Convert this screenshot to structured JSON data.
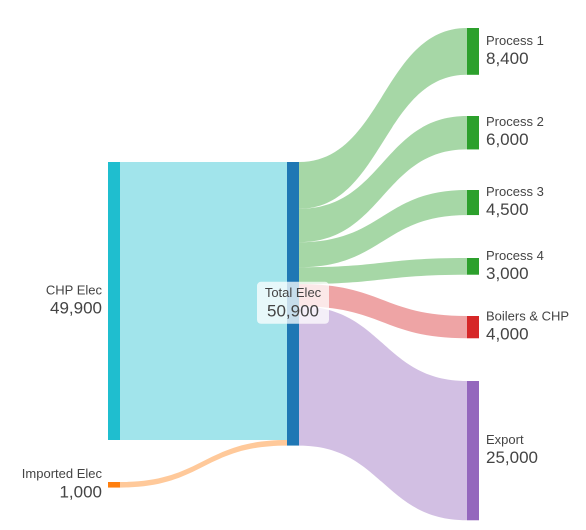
{
  "chart_data": {
    "type": "sankey",
    "nodes": [
      "CHP Elec",
      "Imported Elec",
      "Total Elec",
      "Process 1",
      "Process 2",
      "Process 3",
      "Process 4",
      "Boilers & CHP",
      "Export"
    ],
    "values": [
      49900,
      1000,
      50900,
      8400,
      6000,
      4500,
      3000,
      4000,
      25000
    ],
    "value_labels": [
      "49,900",
      "1,000",
      "50,900",
      "8,400",
      "6,000",
      "4,500",
      "3,000",
      "4,000",
      "25,000"
    ],
    "colors": [
      "#1fbecf",
      "#ff7f0e",
      "#1f77b4",
      "#2ca02c",
      "#2ca02c",
      "#2ca02c",
      "#2ca02c",
      "#d62728",
      "#9467bd"
    ],
    "links": [
      {
        "source": "CHP Elec",
        "target": "Total Elec",
        "value": 49900,
        "color": "#1fbecf"
      },
      {
        "source": "Imported Elec",
        "target": "Total Elec",
        "value": 1000,
        "color": "#ff7f0e"
      },
      {
        "source": "Total Elec",
        "target": "Process 1",
        "value": 8400,
        "color": "#2ca02c"
      },
      {
        "source": "Total Elec",
        "target": "Process 2",
        "value": 6000,
        "color": "#2ca02c"
      },
      {
        "source": "Total Elec",
        "target": "Process 3",
        "value": 4500,
        "color": "#2ca02c"
      },
      {
        "source": "Total Elec",
        "target": "Process 4",
        "value": 3000,
        "color": "#2ca02c"
      },
      {
        "source": "Total Elec",
        "target": "Boilers & CHP",
        "value": 4000,
        "color": "#d62728"
      },
      {
        "source": "Total Elec",
        "target": "Export",
        "value": 25000,
        "color": "#9467bd"
      }
    ]
  }
}
